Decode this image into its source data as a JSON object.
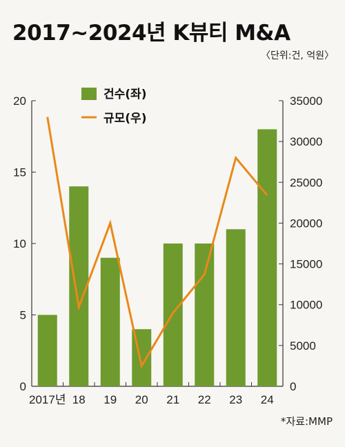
{
  "title": "2017~2024년 K뷰티 M&A",
  "unit_note": "〈단위:건, 억원〉",
  "source": "*자료:MMP",
  "colors": {
    "bar": "#6f9a2e",
    "line": "#e8891a",
    "axis": "#333333"
  },
  "chart_data": {
    "type": "bar",
    "categories": [
      "2017년",
      "18",
      "19",
      "20",
      "21",
      "22",
      "23",
      "24"
    ],
    "series": [
      {
        "name": "건수(좌)",
        "type": "bar",
        "axis": "left",
        "values": [
          5,
          14,
          9,
          4,
          10,
          10,
          11,
          18
        ]
      },
      {
        "name": "규모(우)",
        "type": "line",
        "axis": "right",
        "values": [
          33000,
          9700,
          20000,
          2500,
          9000,
          13700,
          28000,
          23400
        ]
      }
    ],
    "left_axis": {
      "ylim": [
        0,
        20
      ],
      "ticks": [
        "0",
        "5",
        "10",
        "15",
        "20"
      ]
    },
    "right_axis": {
      "ylim": [
        0,
        35000
      ],
      "ticks": [
        "0",
        "5000",
        "10000",
        "15000",
        "20000",
        "25000",
        "30000",
        "35000"
      ]
    },
    "legend": "top-left",
    "grid": false
  }
}
